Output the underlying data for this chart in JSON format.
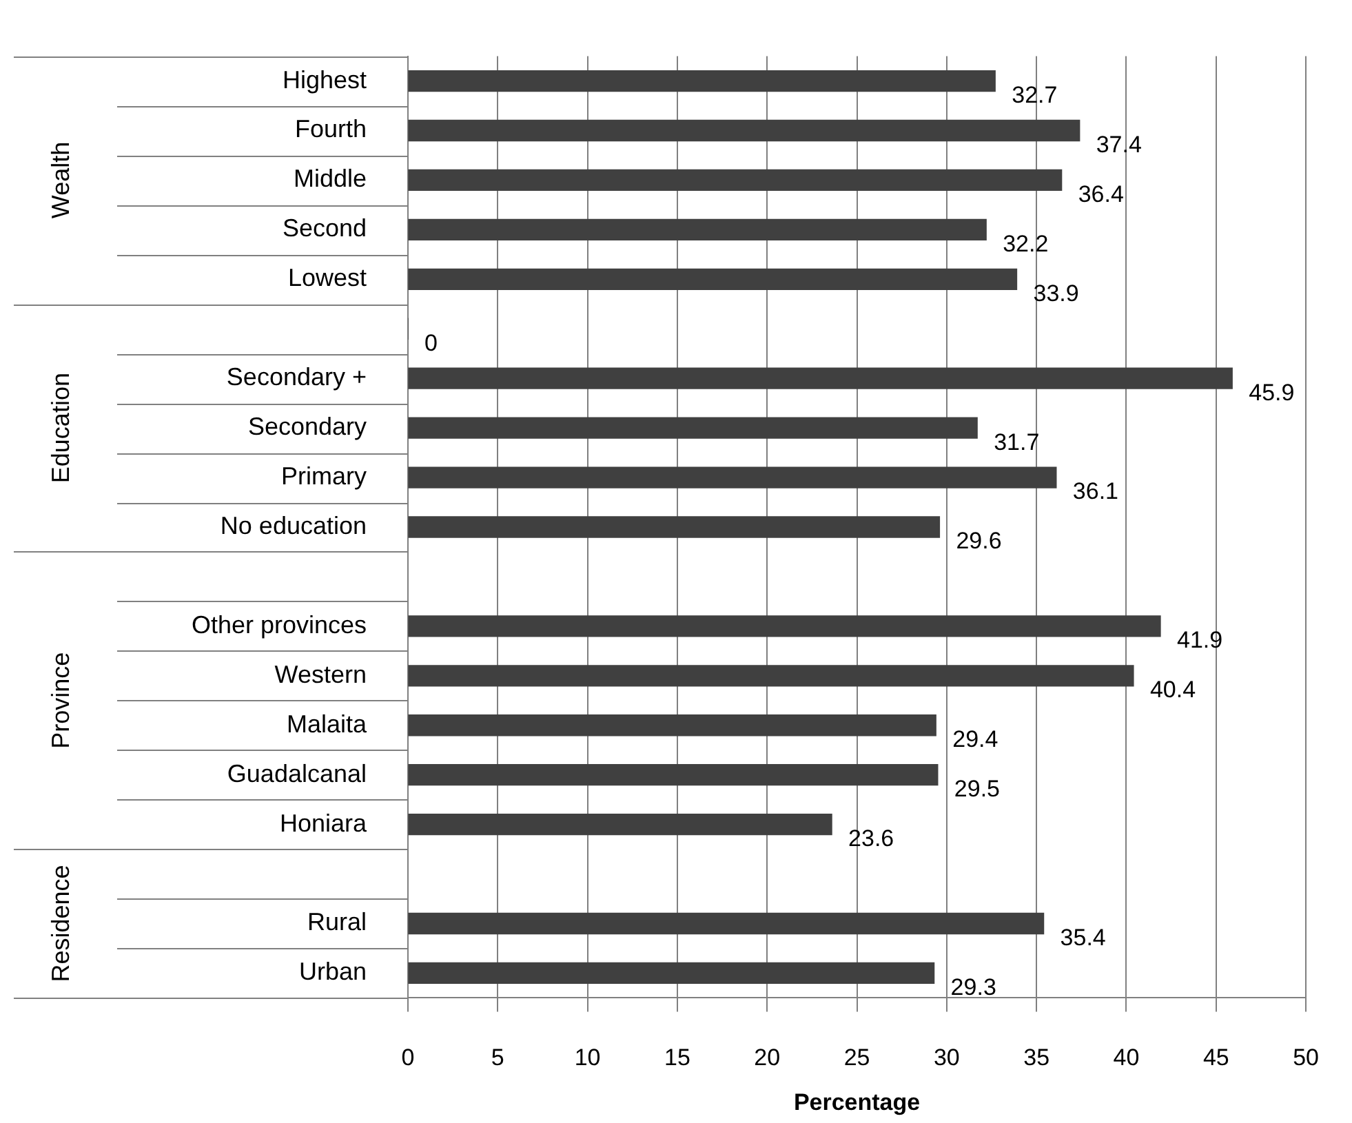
{
  "chart_data": {
    "type": "bar",
    "orientation": "horizontal",
    "xlabel": "Percentage",
    "categories": [
      "Highest",
      "Fourth",
      "Middle",
      "Second",
      "Lowest",
      null,
      "Secondary +",
      "Secondary",
      "Primary",
      "No education",
      null,
      "Other provinces",
      "Western",
      "Malaita",
      "Guadalcanal",
      "Honiara",
      null,
      "Rural",
      "Urban"
    ],
    "values": [
      32.7,
      37.4,
      36.4,
      32.2,
      33.9,
      0,
      45.9,
      31.7,
      36.1,
      29.6,
      null,
      41.9,
      40.4,
      29.4,
      29.5,
      23.6,
      null,
      35.4,
      29.3
    ],
    "color": "#404040",
    "annotations": [
      "Wealth",
      "Education",
      "Province",
      "Residence"
    ],
    "xlim": [
      0,
      50
    ],
    "xticks": [
      0,
      5,
      10,
      15,
      20,
      25,
      30,
      35,
      40,
      45,
      50
    ],
    "grid": "x",
    "data_labels": true,
    "legend": false
  }
}
